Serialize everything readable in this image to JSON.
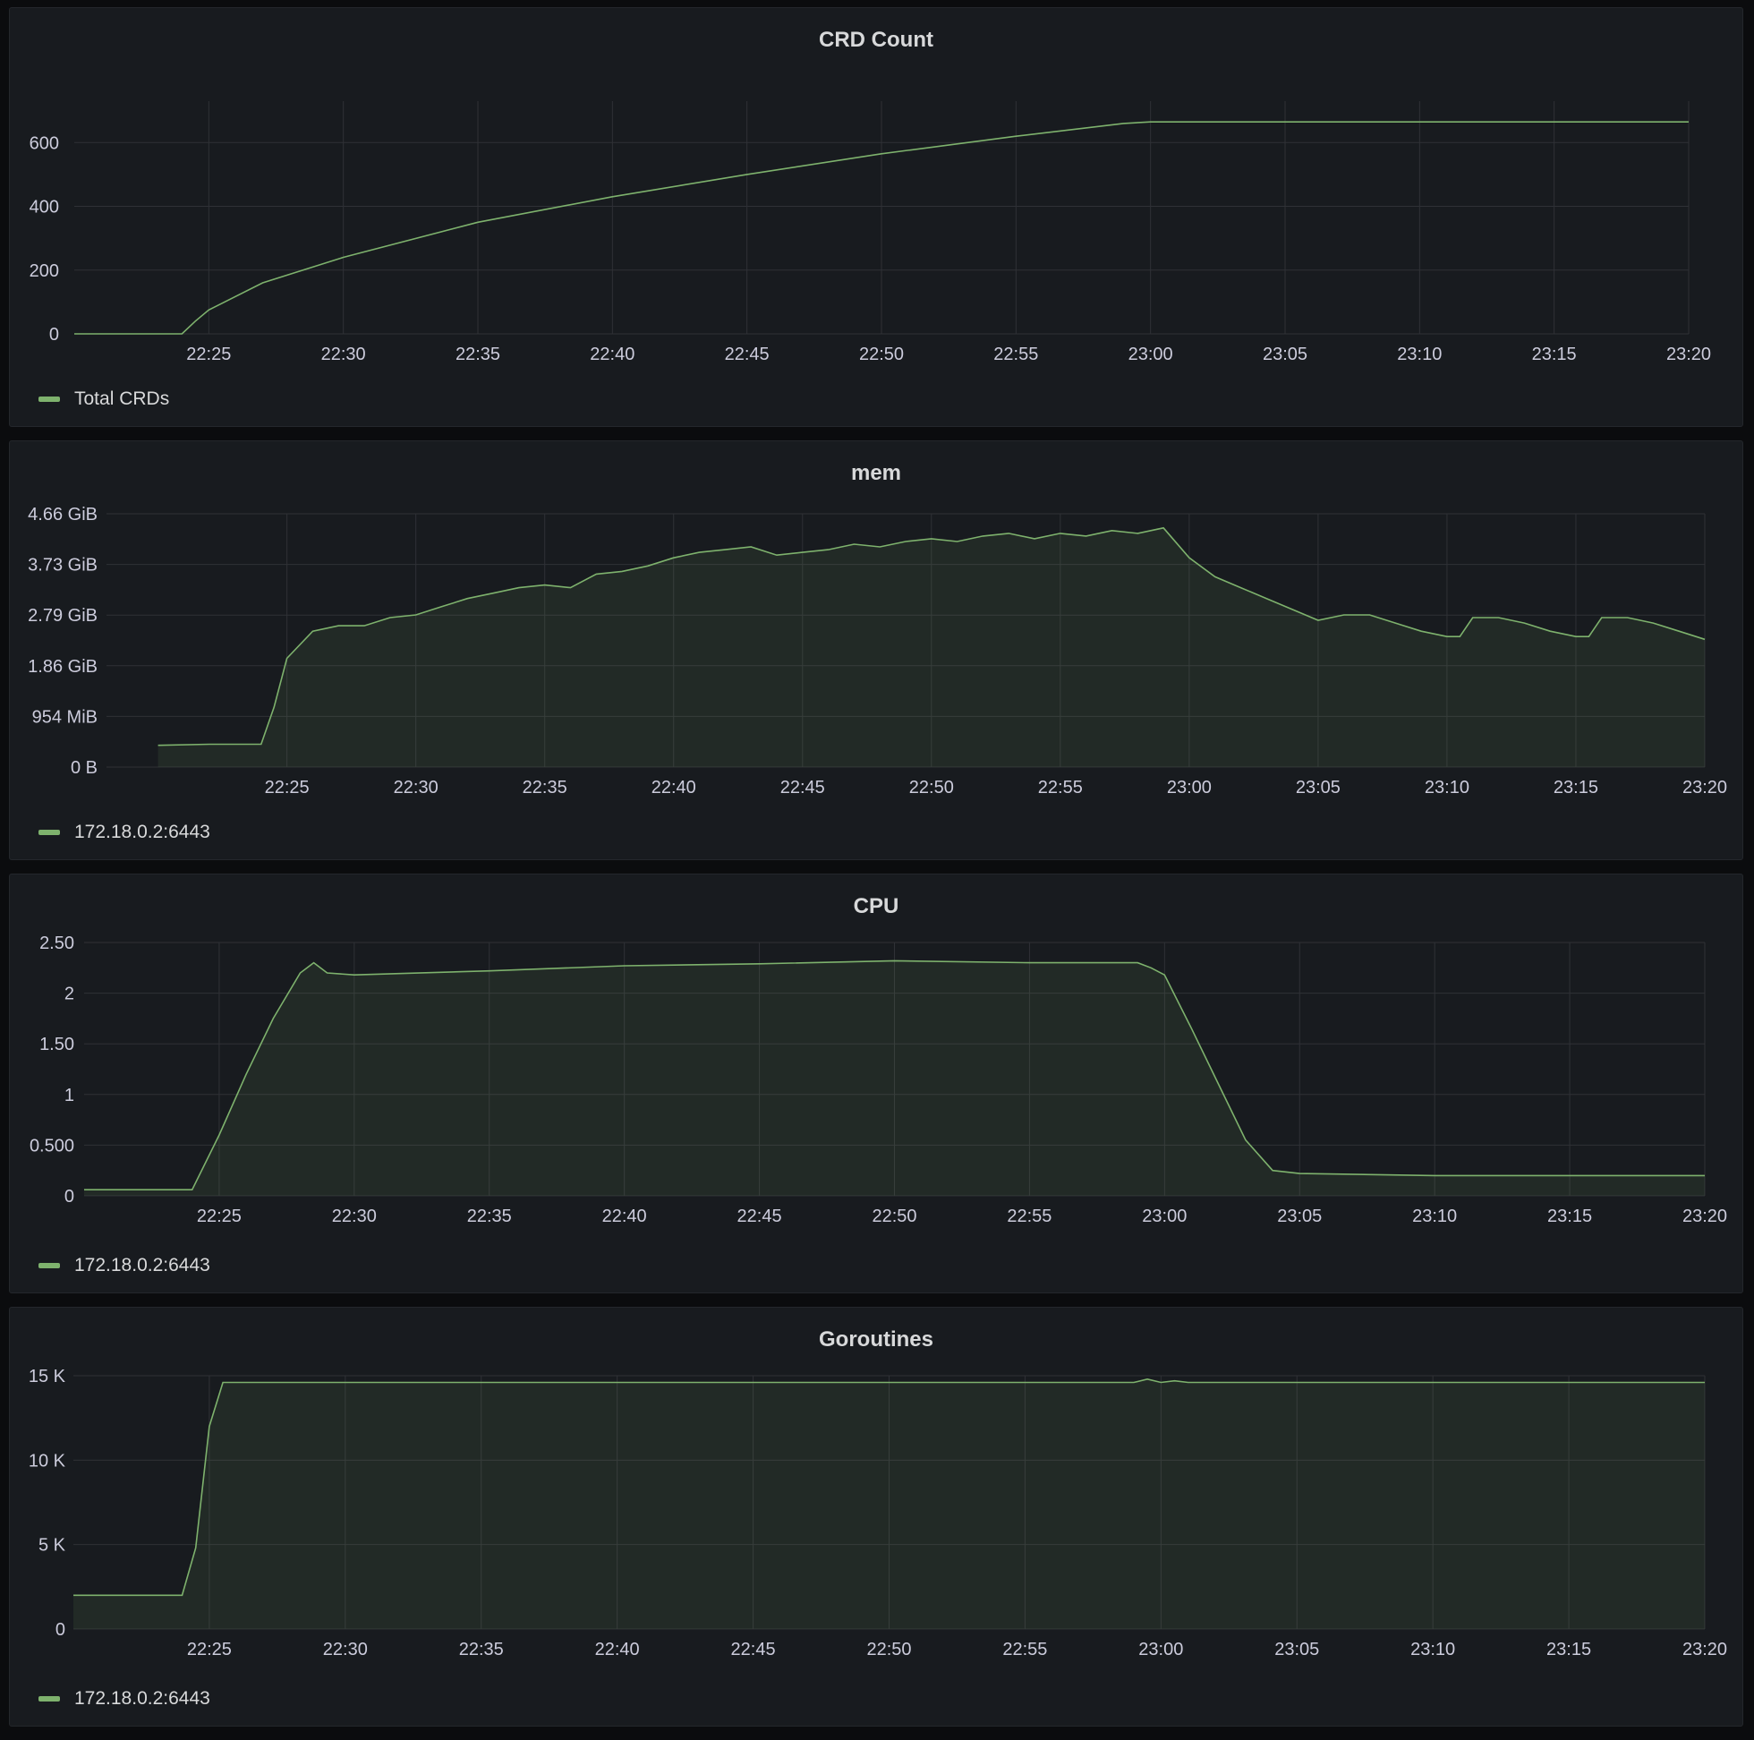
{
  "colors": {
    "background": "#0b0c0e",
    "panel": "#181b1f",
    "series": "#7eb26d",
    "grid": "#2f3136",
    "text": "#ccccdc"
  },
  "chart_data": [
    {
      "type": "area",
      "title": "CRD Count",
      "x": [
        "22:20",
        "22:22",
        "22:24",
        "22:24.5",
        "22:25",
        "22:27",
        "22:30",
        "22:35",
        "22:40",
        "22:45",
        "22:50",
        "22:55",
        "22:59",
        "23:00",
        "23:10",
        "23:20"
      ],
      "x_ticks": [
        "22:25",
        "22:30",
        "22:35",
        "22:40",
        "22:45",
        "22:50",
        "22:55",
        "23:00",
        "23:05",
        "23:10",
        "23:15",
        "23:20"
      ],
      "y_ticks": [
        "0",
        "200",
        "400",
        "600"
      ],
      "ylim": [
        0,
        730
      ],
      "series": [
        {
          "name": "Total CRDs",
          "values": [
            0,
            0,
            0,
            40,
            75,
            160,
            240,
            350,
            430,
            500,
            565,
            620,
            660,
            665,
            665,
            665
          ]
        }
      ],
      "fill": false,
      "legend": "bottom-left"
    },
    {
      "type": "area",
      "title": "mem",
      "x": [
        "22:20",
        "22:22",
        "22:24",
        "22:24.5",
        "22:25",
        "22:26",
        "22:27",
        "22:28",
        "22:29",
        "22:30",
        "22:31",
        "22:32",
        "22:33",
        "22:34",
        "22:35",
        "22:36",
        "22:37",
        "22:38",
        "22:39",
        "22:40",
        "22:41",
        "22:42",
        "22:43",
        "22:44",
        "22:45",
        "22:46",
        "22:47",
        "22:48",
        "22:49",
        "22:50",
        "22:51",
        "22:52",
        "22:53",
        "22:54",
        "22:55",
        "22:56",
        "22:57",
        "22:58",
        "22:59",
        "23:00",
        "23:01",
        "23:02",
        "23:03",
        "23:04",
        "23:05",
        "23:06",
        "23:07",
        "23:08",
        "23:09",
        "23:10",
        "23:10.5",
        "23:11",
        "23:12",
        "23:13",
        "23:14",
        "23:15",
        "23:15.5",
        "23:16",
        "23:17",
        "23:18",
        "23:19",
        "23:20"
      ],
      "x_ticks": [
        "22:25",
        "22:30",
        "22:35",
        "22:40",
        "22:45",
        "22:50",
        "22:55",
        "23:00",
        "23:05",
        "23:10",
        "23:15",
        "23:20"
      ],
      "y_ticks": [
        "0 B",
        "954 MiB",
        "1.86 GiB",
        "2.79 GiB",
        "3.73 GiB",
        "4.66 GiB"
      ],
      "ylim": [
        0,
        4.66
      ],
      "y_unit": "GiB",
      "series": [
        {
          "name": "172.18.0.2:6443",
          "values": [
            0.4,
            0.42,
            0.42,
            1.1,
            2.0,
            2.5,
            2.6,
            2.6,
            2.75,
            2.8,
            2.95,
            3.1,
            3.2,
            3.3,
            3.35,
            3.3,
            3.55,
            3.6,
            3.7,
            3.85,
            3.95,
            4.0,
            4.05,
            3.9,
            3.95,
            4.0,
            4.1,
            4.05,
            4.15,
            4.2,
            4.15,
            4.25,
            4.3,
            4.2,
            4.3,
            4.25,
            4.35,
            4.3,
            4.4,
            3.85,
            3.5,
            3.3,
            3.1,
            2.9,
            2.7,
            2.8,
            2.8,
            2.65,
            2.5,
            2.4,
            2.4,
            2.75,
            2.75,
            2.65,
            2.5,
            2.4,
            2.4,
            2.75,
            2.75,
            2.65,
            2.5,
            2.35
          ]
        }
      ],
      "fill": true,
      "legend": "bottom-left"
    },
    {
      "type": "area",
      "title": "CPU",
      "x": [
        "22:20",
        "22:22",
        "22:24",
        "22:25",
        "22:26",
        "22:27",
        "22:28",
        "22:28.5",
        "22:29",
        "22:30",
        "22:35",
        "22:40",
        "22:45",
        "22:50",
        "22:55",
        "22:59",
        "22:59.5",
        "23:00",
        "23:01",
        "23:02",
        "23:03",
        "23:04",
        "23:05",
        "23:10",
        "23:15",
        "23:20"
      ],
      "x_ticks": [
        "22:25",
        "22:30",
        "22:35",
        "22:40",
        "22:45",
        "22:50",
        "22:55",
        "23:00",
        "23:05",
        "23:10",
        "23:15",
        "23:20"
      ],
      "y_ticks": [
        "0",
        "0.500",
        "1",
        "1.50",
        "2",
        "2.50"
      ],
      "ylim": [
        0,
        2.5
      ],
      "series": [
        {
          "name": "172.18.0.2:6443",
          "values": [
            0.06,
            0.06,
            0.06,
            0.6,
            1.2,
            1.75,
            2.2,
            2.3,
            2.2,
            2.18,
            2.22,
            2.27,
            2.29,
            2.32,
            2.3,
            2.3,
            2.25,
            2.18,
            1.65,
            1.1,
            0.55,
            0.25,
            0.22,
            0.2,
            0.2,
            0.2
          ]
        }
      ],
      "fill": true,
      "legend": "bottom-left"
    },
    {
      "type": "area",
      "title": "Goroutines",
      "x": [
        "22:20",
        "22:22",
        "22:24",
        "22:24.5",
        "22:25",
        "22:25.5",
        "22:30",
        "22:40",
        "22:50",
        "22:59",
        "22:59.5",
        "23:00",
        "23:00.5",
        "23:01",
        "23:10",
        "23:20"
      ],
      "x_ticks": [
        "22:25",
        "22:30",
        "22:35",
        "22:40",
        "22:45",
        "22:50",
        "22:55",
        "23:00",
        "23:05",
        "23:10",
        "23:15",
        "23:20"
      ],
      "y_ticks": [
        "0",
        "5 K",
        "10 K",
        "15 K"
      ],
      "ylim": [
        0,
        15000
      ],
      "series": [
        {
          "name": "172.18.0.2:6443",
          "values": [
            2000,
            2000,
            2000,
            4800,
            12000,
            14600,
            14600,
            14600,
            14600,
            14600,
            14800,
            14600,
            14700,
            14600,
            14600,
            14600
          ]
        }
      ],
      "fill": true,
      "legend": "bottom-left"
    }
  ]
}
